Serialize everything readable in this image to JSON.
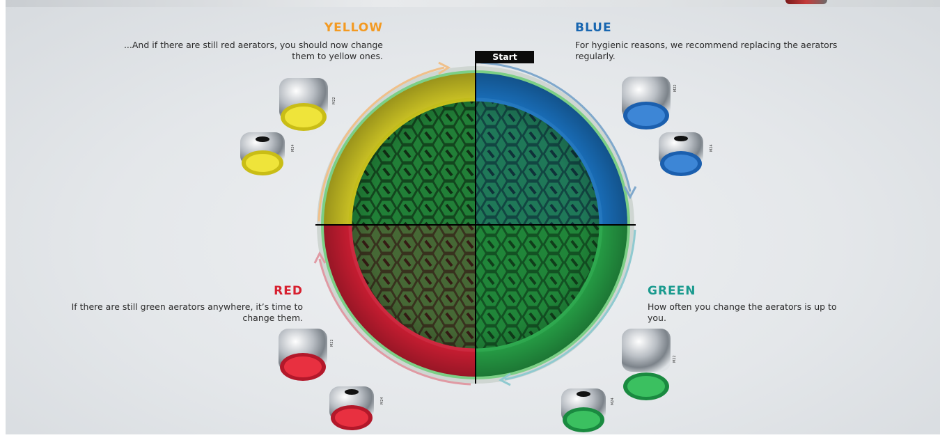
{
  "sections": {
    "yellow": {
      "heading": "YELLOW",
      "text": "...And if there are still red aerators, you should now change them to yellow ones."
    },
    "blue": {
      "heading": "BLUE",
      "text": "For hygienic reasons, we recommend replacing the aerators regularly."
    },
    "red": {
      "heading": "RED",
      "text": "If there are still green aerators anywhere, it’s time to change them."
    },
    "green": {
      "heading": "GREEN",
      "text": "How often you change the aerators is up to you."
    }
  },
  "start_label": "Start",
  "sizes": {
    "large": "M22",
    "small": "M24"
  },
  "colors": {
    "yellow": "#f2e21c",
    "blue": "#1a78d2",
    "red": "#e8213a",
    "green": "#22b24c",
    "yellow_text": "#f39a22",
    "blue_text": "#1866b0",
    "red_text": "#d7202f",
    "green_text": "#1a9a8e"
  }
}
